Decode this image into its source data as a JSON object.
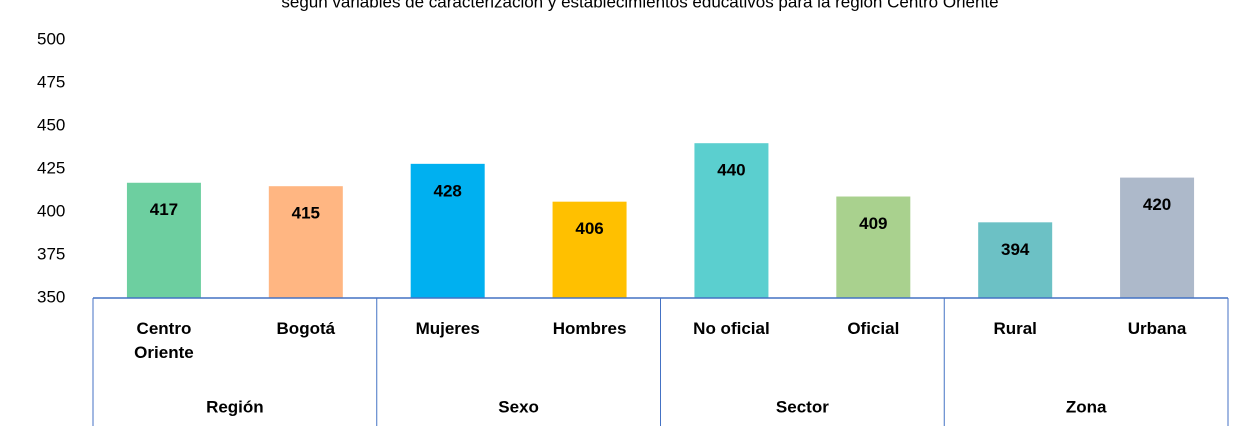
{
  "chart_data": {
    "type": "bar",
    "title": "según variables de caracterización y establecimientos educativos para la región Centro Oriente",
    "groups": [
      {
        "name": "Región",
        "categories": [
          "Centro Oriente",
          "Bogotá"
        ],
        "values": [
          417,
          415
        ],
        "colors": [
          "#6dcfa0",
          "#ffb682"
        ]
      },
      {
        "name": "Sexo",
        "categories": [
          "Mujeres",
          "Hombres"
        ],
        "values": [
          428,
          406
        ],
        "colors": [
          "#00b0f0",
          "#ffc000"
        ]
      },
      {
        "name": "Sector",
        "categories": [
          "No oficial",
          "Oficial"
        ],
        "values": [
          440,
          409
        ],
        "colors": [
          "#5bcfcf",
          "#a9d18e"
        ]
      },
      {
        "name": "Zona",
        "categories": [
          "Rural",
          "Urbana"
        ],
        "values": [
          394,
          420
        ],
        "colors": [
          "#6cc1c5",
          "#adb9ca"
        ]
      }
    ],
    "ylim": [
      350,
      500
    ],
    "yticks": [
      350,
      375,
      400,
      425,
      450,
      475,
      500
    ],
    "grid": false
  }
}
